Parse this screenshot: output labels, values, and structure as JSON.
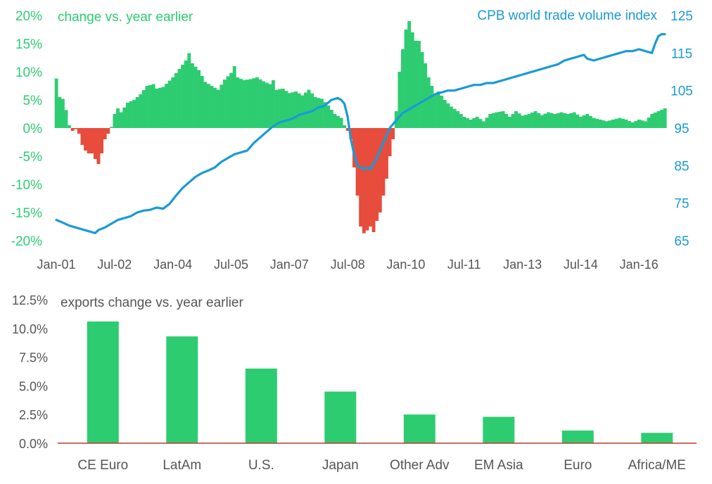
{
  "colors": {
    "green": "#2ecc71",
    "red": "#e74c3c",
    "blue": "#1a9ad6",
    "left_axis": "#2ecc71",
    "right_axis": "#1a9ad6",
    "tick_text": "#555555",
    "baseline_red": "#c0392b"
  },
  "chart_data": [
    {
      "type": "bar+line",
      "title_left": "change vs. year earlier",
      "title_right": "CPB world trade volume index",
      "x_tick_labels": [
        "Jan-01",
        "Jul-02",
        "Jan-04",
        "Jul-05",
        "Jan-07",
        "Jul-08",
        "Jan-10",
        "Jul-11",
        "Jan-13",
        "Jul-14",
        "Jan-16"
      ],
      "y_left_ticks": [
        "20%",
        "15%",
        "10%",
        "5%",
        "0%",
        "-5%",
        "-10%",
        "-15%",
        "-20%"
      ],
      "y_left_range": [
        -20,
        20
      ],
      "y_right_ticks": [
        "125",
        "115",
        "105",
        "95",
        "85",
        "75",
        "65"
      ],
      "y_right_range": [
        65,
        125
      ],
      "x_range_months": [
        0,
        188
      ],
      "bar_series": {
        "name": "change vs. year earlier (%)",
        "monthly_anchors": [
          [
            0,
            8.8
          ],
          [
            1,
            5.5
          ],
          [
            2,
            5.2
          ],
          [
            3,
            3.2
          ],
          [
            4,
            0.5
          ],
          [
            5,
            -0.5
          ],
          [
            6,
            -0.2
          ],
          [
            7,
            -1.0
          ],
          [
            8,
            -3.0
          ],
          [
            9,
            -4.0
          ],
          [
            10,
            -4.5
          ],
          [
            11,
            -4.5
          ],
          [
            12,
            -5.5
          ],
          [
            13,
            -6.4
          ],
          [
            14,
            -4.5
          ],
          [
            15,
            -2.0
          ],
          [
            16,
            -1.0
          ],
          [
            17,
            0.2
          ],
          [
            18,
            2.5
          ],
          [
            19,
            3.5
          ],
          [
            20,
            2.8
          ],
          [
            22,
            4.5
          ],
          [
            24,
            5.0
          ],
          [
            26,
            6.0
          ],
          [
            28,
            7.5
          ],
          [
            30,
            7.8
          ],
          [
            31,
            7.0
          ],
          [
            33,
            7.3
          ],
          [
            36,
            9.0
          ],
          [
            38,
            10.5
          ],
          [
            40,
            12.0
          ],
          [
            41,
            13.3
          ],
          [
            42,
            11.5
          ],
          [
            44,
            10.3
          ],
          [
            46,
            8.2
          ],
          [
            48,
            7.5
          ],
          [
            50,
            6.8
          ],
          [
            52,
            8.6
          ],
          [
            54,
            9.8
          ],
          [
            55,
            11.0
          ],
          [
            56,
            9.0
          ],
          [
            58,
            8.5
          ],
          [
            60,
            8.7
          ],
          [
            62,
            9.0
          ],
          [
            64,
            8.3
          ],
          [
            66,
            7.8
          ],
          [
            67,
            8.5
          ],
          [
            68,
            6.8
          ],
          [
            70,
            7.0
          ],
          [
            72,
            6.2
          ],
          [
            74,
            6.5
          ],
          [
            76,
            5.8
          ],
          [
            78,
            6.8
          ],
          [
            80,
            5.5
          ],
          [
            82,
            5.2
          ],
          [
            84,
            4.0
          ],
          [
            86,
            2.5
          ],
          [
            88,
            1.8
          ],
          [
            89,
            0.5
          ],
          [
            90,
            -0.5
          ],
          [
            91,
            -2.0
          ],
          [
            92,
            -7.0
          ],
          [
            93,
            -12.0
          ],
          [
            94,
            -17.5
          ],
          [
            95,
            -18.7
          ],
          [
            96,
            -18.2
          ],
          [
            97,
            -17.5
          ],
          [
            98,
            -18.5
          ],
          [
            99,
            -16.5
          ],
          [
            100,
            -15.0
          ],
          [
            101,
            -12.0
          ],
          [
            102,
            -9.0
          ],
          [
            103,
            -5.0
          ],
          [
            104,
            -2.0
          ],
          [
            105,
            3.0
          ],
          [
            106,
            10.0
          ],
          [
            107,
            14.0
          ],
          [
            108,
            17.5
          ],
          [
            109,
            19.0
          ],
          [
            110,
            17.0
          ],
          [
            111,
            15.5
          ],
          [
            112,
            15.5
          ],
          [
            113,
            13.5
          ],
          [
            114,
            11.5
          ],
          [
            115,
            9.0
          ],
          [
            116,
            7.5
          ],
          [
            117,
            6.0
          ],
          [
            118,
            6.5
          ],
          [
            120,
            5.0
          ],
          [
            122,
            3.8
          ],
          [
            124,
            3.0
          ],
          [
            126,
            2.0
          ],
          [
            128,
            1.5
          ],
          [
            130,
            2.0
          ],
          [
            132,
            1.2
          ],
          [
            134,
            2.5
          ],
          [
            136,
            2.8
          ],
          [
            138,
            3.0
          ],
          [
            140,
            2.0
          ],
          [
            142,
            3.0
          ],
          [
            144,
            2.2
          ],
          [
            146,
            2.5
          ],
          [
            148,
            3.0
          ],
          [
            150,
            2.3
          ],
          [
            152,
            2.8
          ],
          [
            154,
            2.5
          ],
          [
            156,
            2.8
          ],
          [
            158,
            2.5
          ],
          [
            160,
            2.8
          ],
          [
            162,
            2.0
          ],
          [
            164,
            2.5
          ],
          [
            166,
            1.8
          ],
          [
            168,
            1.5
          ],
          [
            170,
            1.2
          ],
          [
            172,
            1.5
          ],
          [
            174,
            1.8
          ],
          [
            176,
            1.5
          ],
          [
            178,
            1.0
          ],
          [
            180,
            1.5
          ],
          [
            182,
            1.2
          ],
          [
            184,
            2.5
          ],
          [
            186,
            3.0
          ],
          [
            188,
            3.5
          ]
        ]
      },
      "line_series": {
        "name": "CPB world trade volume index",
        "monthly_anchors": [
          [
            0,
            70.5
          ],
          [
            2,
            69.8
          ],
          [
            4,
            69.0
          ],
          [
            6,
            68.5
          ],
          [
            8,
            68.0
          ],
          [
            10,
            67.5
          ],
          [
            12,
            67.0
          ],
          [
            13,
            67.8
          ],
          [
            15,
            68.5
          ],
          [
            17,
            69.5
          ],
          [
            19,
            70.5
          ],
          [
            21,
            71.0
          ],
          [
            23,
            71.5
          ],
          [
            25,
            72.5
          ],
          [
            27,
            73.0
          ],
          [
            29,
            73.2
          ],
          [
            31,
            73.8
          ],
          [
            33,
            73.5
          ],
          [
            35,
            74.8
          ],
          [
            37,
            77.0
          ],
          [
            39,
            79.0
          ],
          [
            41,
            80.5
          ],
          [
            43,
            82.0
          ],
          [
            45,
            83.0
          ],
          [
            47,
            83.7
          ],
          [
            49,
            84.5
          ],
          [
            51,
            86.0
          ],
          [
            53,
            87.0
          ],
          [
            55,
            88.0
          ],
          [
            57,
            88.5
          ],
          [
            59,
            89.0
          ],
          [
            61,
            91.0
          ],
          [
            63,
            92.5
          ],
          [
            65,
            94.0
          ],
          [
            67,
            95.5
          ],
          [
            69,
            96.5
          ],
          [
            71,
            97.0
          ],
          [
            73,
            97.5
          ],
          [
            75,
            98.5
          ],
          [
            77,
            99.0
          ],
          [
            79,
            99.5
          ],
          [
            81,
            100.5
          ],
          [
            83,
            101.0
          ],
          [
            85,
            102.5
          ],
          [
            87,
            103.0
          ],
          [
            88,
            102.5
          ],
          [
            89,
            101.5
          ],
          [
            90,
            98.0
          ],
          [
            91,
            92.0
          ],
          [
            92,
            88.0
          ],
          [
            93,
            85.0
          ],
          [
            94,
            84.5
          ],
          [
            95,
            84.0
          ],
          [
            96,
            84.5
          ],
          [
            97,
            84.0
          ],
          [
            98,
            85.5
          ],
          [
            99,
            87.0
          ],
          [
            100,
            89.0
          ],
          [
            101,
            91.0
          ],
          [
            102,
            93.0
          ],
          [
            103,
            95.0
          ],
          [
            104,
            96.0
          ],
          [
            105,
            97.0
          ],
          [
            106,
            98.0
          ],
          [
            107,
            99.0
          ],
          [
            109,
            100.0
          ],
          [
            111,
            101.0
          ],
          [
            113,
            102.0
          ],
          [
            115,
            103.0
          ],
          [
            117,
            104.0
          ],
          [
            119,
            104.5
          ],
          [
            121,
            105.0
          ],
          [
            123,
            105.0
          ],
          [
            125,
            105.5
          ],
          [
            127,
            106.0
          ],
          [
            129,
            106.5
          ],
          [
            131,
            106.5
          ],
          [
            133,
            107.0
          ],
          [
            135,
            107.0
          ],
          [
            137,
            107.5
          ],
          [
            139,
            108.0
          ],
          [
            141,
            108.5
          ],
          [
            143,
            109.0
          ],
          [
            145,
            109.5
          ],
          [
            147,
            110.0
          ],
          [
            149,
            110.5
          ],
          [
            151,
            111.0
          ],
          [
            153,
            111.5
          ],
          [
            155,
            112.0
          ],
          [
            157,
            113.0
          ],
          [
            159,
            113.5
          ],
          [
            161,
            114.0
          ],
          [
            163,
            114.5
          ],
          [
            164,
            113.5
          ],
          [
            166,
            113.0
          ],
          [
            168,
            113.5
          ],
          [
            170,
            114.0
          ],
          [
            172,
            114.5
          ],
          [
            174,
            115.0
          ],
          [
            176,
            115.5
          ],
          [
            178,
            115.5
          ],
          [
            180,
            116.0
          ],
          [
            182,
            115.5
          ],
          [
            184,
            115.0
          ],
          [
            185,
            117.5
          ],
          [
            186,
            119.5
          ],
          [
            187,
            120.0
          ],
          [
            188,
            120.0
          ]
        ]
      }
    },
    {
      "type": "bar",
      "title": "exports change vs. year earlier",
      "categories": [
        "CE Euro",
        "LatAm",
        "U.S.",
        "Japan",
        "Other Adv",
        "EM Asia",
        "Euro",
        "Africa/ME"
      ],
      "values": [
        10.6,
        9.3,
        6.5,
        4.5,
        2.5,
        2.3,
        1.1,
        0.9
      ],
      "y_ticks": [
        "12.5%",
        "10.0%",
        "7.5%",
        "5.0%",
        "2.5%",
        "0.0%"
      ],
      "ylim": [
        0,
        12.5
      ]
    }
  ]
}
